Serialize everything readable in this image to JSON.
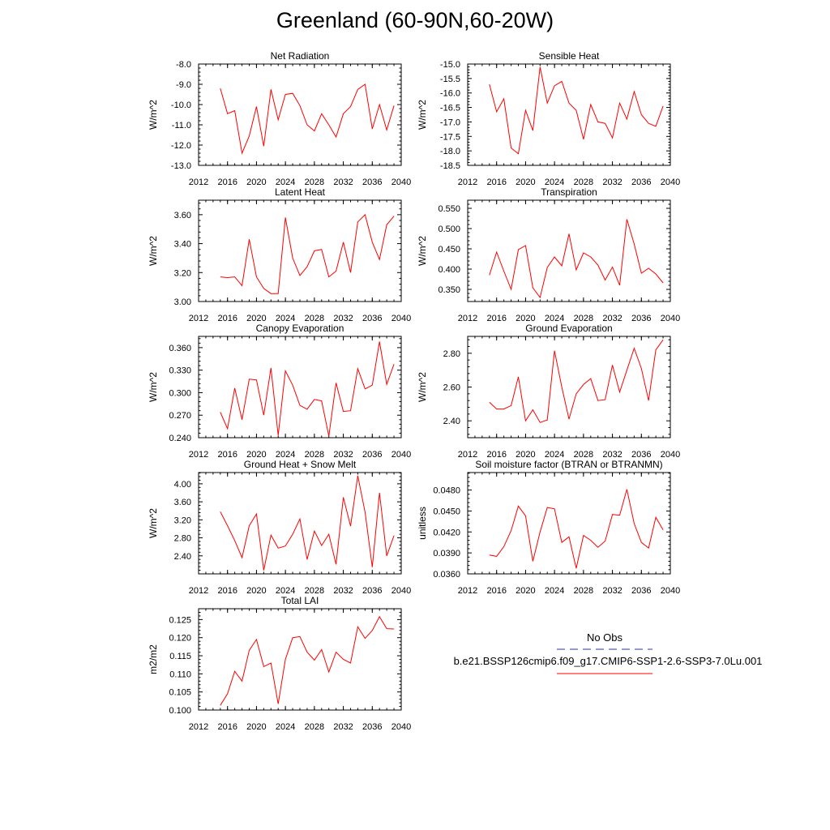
{
  "title": "Greenland (60-90N,60-20W)",
  "legend": {
    "obs_label": "No Obs",
    "obs_color": "#3333aa",
    "model_label": "b.e21.BSSP126cmip6.f09_g17.CMIP6-SSP1-2.6-SSP3-7.0Lu.001",
    "model_color": "#ff0000"
  },
  "chart_data": [
    {
      "type": "line",
      "title": "Net Radiation",
      "ylabel": "W/m^2",
      "xlim": [
        2012,
        2040
      ],
      "xticks": [
        "2012",
        "2016",
        "2020",
        "2024",
        "2028",
        "2032",
        "2036",
        "2040"
      ],
      "ylim": [
        -13.0,
        -8.0
      ],
      "yticks": [
        "-13.0",
        "-12.0",
        "-11.0",
        "-10.0",
        "-9.0",
        "-8.0"
      ],
      "series": [
        {
          "color": "#ff0000",
          "x": [
            2015,
            2016,
            2017,
            2018,
            2019,
            2020,
            2021,
            2022,
            2023,
            2024,
            2025,
            2026,
            2027,
            2028,
            2029,
            2030,
            2031,
            2032,
            2033,
            2034,
            2035,
            2036,
            2037,
            2038,
            2039
          ],
          "y": [
            -9.2,
            -10.45,
            -10.3,
            -12.4,
            -11.55,
            -10.1,
            -12.05,
            -9.25,
            -10.75,
            -9.5,
            -9.45,
            -10.05,
            -11.0,
            -11.3,
            -10.45,
            -11.0,
            -11.6,
            -10.45,
            -10.1,
            -9.25,
            -9.0,
            -11.2,
            -10.0,
            -11.25,
            -10.05
          ]
        }
      ]
    },
    {
      "type": "line",
      "title": "Sensible Heat",
      "ylabel": "W/m^2",
      "xlim": [
        2012,
        2040
      ],
      "xticks": [
        "2012",
        "2016",
        "2020",
        "2024",
        "2028",
        "2032",
        "2036",
        "2040"
      ],
      "ylim": [
        -18.5,
        -15.0
      ],
      "yticks": [
        "-18.5",
        "-18.0",
        "-17.5",
        "-17.0",
        "-16.5",
        "-16.0",
        "-15.5",
        "-15.0"
      ],
      "series": [
        {
          "color": "#ff0000",
          "x": [
            2015,
            2016,
            2017,
            2018,
            2019,
            2020,
            2021,
            2022,
            2023,
            2024,
            2025,
            2026,
            2027,
            2028,
            2029,
            2030,
            2031,
            2032,
            2033,
            2034,
            2035,
            2036,
            2037,
            2038,
            2039
          ],
          "y": [
            -15.7,
            -16.65,
            -16.2,
            -17.9,
            -18.1,
            -16.6,
            -17.3,
            -15.1,
            -16.35,
            -15.75,
            -15.6,
            -16.35,
            -16.6,
            -17.6,
            -16.4,
            -17.0,
            -17.05,
            -17.55,
            -16.35,
            -16.9,
            -15.95,
            -16.75,
            -17.05,
            -17.15,
            -16.45
          ]
        }
      ]
    },
    {
      "type": "line",
      "title": "Latent Heat",
      "ylabel": "W/m^2",
      "xlim": [
        2012,
        2040
      ],
      "xticks": [
        "2012",
        "2016",
        "2020",
        "2024",
        "2028",
        "2032",
        "2036",
        "2040"
      ],
      "ylim": [
        3.0,
        3.7
      ],
      "yticks": [
        "3.00",
        "3.20",
        "3.40",
        "3.60"
      ],
      "series": [
        {
          "color": "#ff0000",
          "x": [
            2015,
            2016,
            2017,
            2018,
            2019,
            2020,
            2021,
            2022,
            2023,
            2024,
            2025,
            2026,
            2027,
            2028,
            2029,
            2030,
            2031,
            2032,
            2033,
            2034,
            2035,
            2036,
            2037,
            2038,
            2039
          ],
          "y": [
            3.17,
            3.165,
            3.17,
            3.11,
            3.43,
            3.17,
            3.09,
            3.055,
            3.055,
            3.58,
            3.3,
            3.18,
            3.24,
            3.35,
            3.36,
            3.17,
            3.21,
            3.41,
            3.2,
            3.55,
            3.6,
            3.41,
            3.29,
            3.53,
            3.59
          ]
        }
      ]
    },
    {
      "type": "line",
      "title": "Transpiration",
      "ylabel": "W/m^2",
      "xlim": [
        2012,
        2040
      ],
      "xticks": [
        "2012",
        "2016",
        "2020",
        "2024",
        "2028",
        "2032",
        "2036",
        "2040"
      ],
      "ylim": [
        0.32,
        0.57
      ],
      "yticks": [
        "0.350",
        "0.400",
        "0.450",
        "0.500",
        "0.550"
      ],
      "series": [
        {
          "color": "#ff0000",
          "x": [
            2015,
            2016,
            2017,
            2018,
            2019,
            2020,
            2021,
            2022,
            2023,
            2024,
            2025,
            2026,
            2027,
            2028,
            2029,
            2030,
            2031,
            2032,
            2033,
            2034,
            2035,
            2036,
            2037,
            2038,
            2039
          ],
          "y": [
            0.385,
            0.442,
            0.395,
            0.35,
            0.448,
            0.458,
            0.354,
            0.33,
            0.404,
            0.43,
            0.408,
            0.487,
            0.398,
            0.44,
            0.43,
            0.41,
            0.373,
            0.405,
            0.36,
            0.523,
            0.462,
            0.39,
            0.402,
            0.388,
            0.366
          ]
        }
      ]
    },
    {
      "type": "line",
      "title": "Canopy Evaporation",
      "ylabel": "W/m^2",
      "xlim": [
        2012,
        2040
      ],
      "xticks": [
        "2012",
        "2016",
        "2020",
        "2024",
        "2028",
        "2032",
        "2036",
        "2040"
      ],
      "ylim": [
        0.24,
        0.375
      ],
      "yticks": [
        "0.240",
        "0.270",
        "0.300",
        "0.330",
        "0.360"
      ],
      "series": [
        {
          "color": "#ff0000",
          "x": [
            2015,
            2016,
            2017,
            2018,
            2019,
            2020,
            2021,
            2022,
            2023,
            2024,
            2025,
            2026,
            2027,
            2028,
            2029,
            2030,
            2031,
            2032,
            2033,
            2034,
            2035,
            2036,
            2037,
            2038,
            2039
          ],
          "y": [
            0.274,
            0.252,
            0.306,
            0.264,
            0.318,
            0.317,
            0.27,
            0.333,
            0.243,
            0.329,
            0.31,
            0.283,
            0.278,
            0.291,
            0.289,
            0.242,
            0.313,
            0.275,
            0.276,
            0.332,
            0.305,
            0.31,
            0.368,
            0.311,
            0.338
          ]
        }
      ]
    },
    {
      "type": "line",
      "title": "Ground Evaporation",
      "ylabel": "W/m^2",
      "xlim": [
        2012,
        2040
      ],
      "xticks": [
        "2012",
        "2016",
        "2020",
        "2024",
        "2028",
        "2032",
        "2036",
        "2040"
      ],
      "ylim": [
        2.3,
        2.9
      ],
      "yticks": [
        "2.40",
        "2.60",
        "2.80"
      ],
      "series": [
        {
          "color": "#ff0000",
          "x": [
            2015,
            2016,
            2017,
            2018,
            2019,
            2020,
            2021,
            2022,
            2023,
            2024,
            2025,
            2026,
            2027,
            2028,
            2029,
            2030,
            2031,
            2032,
            2033,
            2034,
            2035,
            2036,
            2037,
            2038,
            2039
          ],
          "y": [
            2.51,
            2.47,
            2.47,
            2.49,
            2.66,
            2.4,
            2.465,
            2.39,
            2.405,
            2.815,
            2.6,
            2.41,
            2.56,
            2.615,
            2.65,
            2.52,
            2.525,
            2.73,
            2.57,
            2.7,
            2.83,
            2.71,
            2.52,
            2.82,
            2.88
          ]
        }
      ]
    },
    {
      "type": "line",
      "title": "Ground Heat + Snow Melt",
      "ylabel": "W/m^2",
      "xlim": [
        2012,
        2040
      ],
      "xticks": [
        "2012",
        "2016",
        "2020",
        "2024",
        "2028",
        "2032",
        "2036",
        "2040"
      ],
      "ylim": [
        2.0,
        4.25
      ],
      "yticks": [
        "2.40",
        "2.80",
        "3.20",
        "3.60",
        "4.00"
      ],
      "series": [
        {
          "color": "#ff0000",
          "x": [
            2015,
            2016,
            2017,
            2018,
            2019,
            2020,
            2021,
            2022,
            2023,
            2024,
            2025,
            2026,
            2027,
            2028,
            2029,
            2030,
            2031,
            2032,
            2033,
            2034,
            2035,
            2036,
            2037,
            2038,
            2039
          ],
          "y": [
            3.38,
            3.07,
            2.74,
            2.36,
            3.07,
            3.33,
            2.08,
            2.86,
            2.57,
            2.62,
            2.88,
            3.22,
            2.32,
            2.95,
            2.63,
            2.88,
            2.21,
            3.7,
            3.06,
            4.18,
            3.37,
            2.15,
            3.8,
            2.4,
            2.85
          ]
        }
      ]
    },
    {
      "type": "line",
      "title": "Soil moisture factor (BTRAN or BTRANMN)",
      "ylabel": "unitless",
      "xlim": [
        2012,
        2040
      ],
      "xticks": [
        "2012",
        "2016",
        "2020",
        "2024",
        "2028",
        "2032",
        "2036",
        "2040"
      ],
      "ylim": [
        0.036,
        0.0505
      ],
      "yticks": [
        "0.0360",
        "0.0390",
        "0.0420",
        "0.0450",
        "0.0480"
      ],
      "series": [
        {
          "color": "#ff0000",
          "x": [
            2015,
            2016,
            2017,
            2018,
            2019,
            2020,
            2021,
            2022,
            2023,
            2024,
            2025,
            2026,
            2027,
            2028,
            2029,
            2030,
            2031,
            2032,
            2033,
            2034,
            2035,
            2036,
            2037,
            2038,
            2039
          ],
          "y": [
            0.0387,
            0.0385,
            0.0399,
            0.0422,
            0.0457,
            0.0443,
            0.0378,
            0.042,
            0.0455,
            0.0453,
            0.0405,
            0.0413,
            0.0368,
            0.0415,
            0.0408,
            0.0398,
            0.0407,
            0.0445,
            0.0444,
            0.0481,
            0.0432,
            0.0405,
            0.0397,
            0.0441,
            0.0423
          ]
        }
      ]
    },
    {
      "type": "line",
      "title": "Total LAI",
      "ylabel": "m2/m2",
      "xlim": [
        2012,
        2040
      ],
      "xticks": [
        "2012",
        "2016",
        "2020",
        "2024",
        "2028",
        "2032",
        "2036",
        "2040"
      ],
      "ylim": [
        0.1,
        0.128
      ],
      "yticks": [
        "0.100",
        "0.105",
        "0.110",
        "0.115",
        "0.120",
        "0.125"
      ],
      "series": [
        {
          "color": "#ff0000",
          "x": [
            2015,
            2016,
            2017,
            2018,
            2019,
            2020,
            2021,
            2022,
            2023,
            2024,
            2025,
            2026,
            2027,
            2028,
            2029,
            2030,
            2031,
            2032,
            2033,
            2034,
            2035,
            2036,
            2037,
            2038,
            2039
          ],
          "y": [
            0.1013,
            0.1045,
            0.1107,
            0.108,
            0.1165,
            0.1195,
            0.112,
            0.113,
            0.1017,
            0.114,
            0.12,
            0.1203,
            0.116,
            0.1138,
            0.1167,
            0.1105,
            0.116,
            0.114,
            0.113,
            0.123,
            0.1198,
            0.122,
            0.1258,
            0.1225,
            0.1224
          ]
        }
      ]
    }
  ]
}
